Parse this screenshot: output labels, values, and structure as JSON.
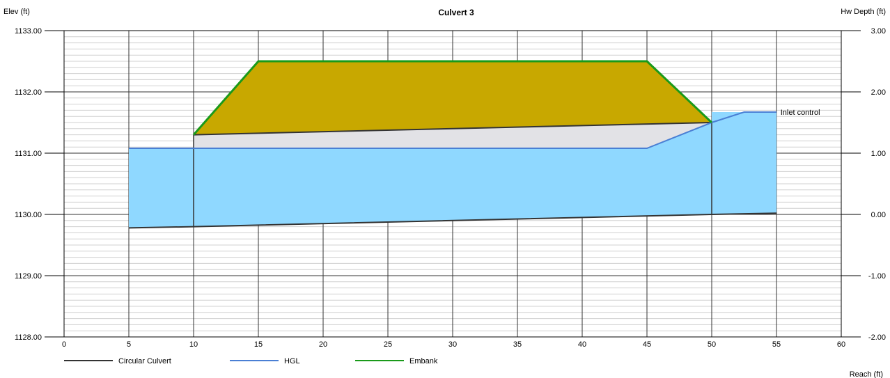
{
  "chart_data": {
    "type": "area",
    "title": "Culvert 3",
    "ylabel_left": "Elev (ft)",
    "ylabel_right": "Hw Depth (ft)",
    "xlabel": "Reach (ft)",
    "xlim": [
      0,
      60
    ],
    "ylim_left": [
      1128.0,
      1133.0
    ],
    "ylim_right": [
      -2.0,
      3.0
    ],
    "x_ticks": [
      "0",
      "5",
      "10",
      "15",
      "20",
      "25",
      "30",
      "35",
      "40",
      "45",
      "50",
      "55",
      "60"
    ],
    "y_ticks_left": [
      "1128.00",
      "1129.00",
      "1130.00",
      "1131.00",
      "1132.00",
      "1133.00"
    ],
    "y_ticks_right": [
      "-2.00",
      "-1.00",
      "0.00",
      "1.00",
      "2.00",
      "3.00"
    ],
    "grid": true,
    "legend_position": "bottom-left",
    "series": [
      {
        "name": "Circular Culvert",
        "color": "#333333",
        "invert": [
          [
            5,
            1129.78
          ],
          [
            10,
            1129.8
          ],
          [
            50,
            1130.0
          ],
          [
            55,
            1130.02
          ]
        ],
        "crown": [
          [
            10,
            1131.3
          ],
          [
            50,
            1131.5
          ]
        ],
        "inlet_x": 50,
        "outlet_x": 10
      },
      {
        "name": "HGL",
        "color": "#4a7fd4",
        "points": [
          [
            5,
            1131.08
          ],
          [
            45,
            1131.08
          ],
          [
            50,
            1131.5
          ],
          [
            52.5,
            1131.67
          ],
          [
            55,
            1131.67
          ]
        ]
      },
      {
        "name": "Embank",
        "color": "#1a9a1a",
        "points": [
          [
            10,
            1131.3
          ],
          [
            15,
            1132.5
          ],
          [
            45,
            1132.5
          ],
          [
            50,
            1131.5
          ]
        ]
      }
    ],
    "water_fill": {
      "color": "#8fd8ff",
      "polygon": [
        [
          5,
          1129.78
        ],
        [
          5,
          1131.08
        ],
        [
          45,
          1131.08
        ],
        [
          50,
          1131.5
        ],
        [
          50,
          1131.67
        ],
        [
          55,
          1131.67
        ],
        [
          55,
          1130.02
        ]
      ]
    },
    "embank_fill": {
      "color": "#c8a800"
    },
    "culvert_fill": {
      "color": "#e2e2e6"
    },
    "annotations": [
      {
        "text": "Inlet control",
        "x": 55.2,
        "y": 1131.67,
        "color": "#8b1a1a"
      }
    ]
  }
}
